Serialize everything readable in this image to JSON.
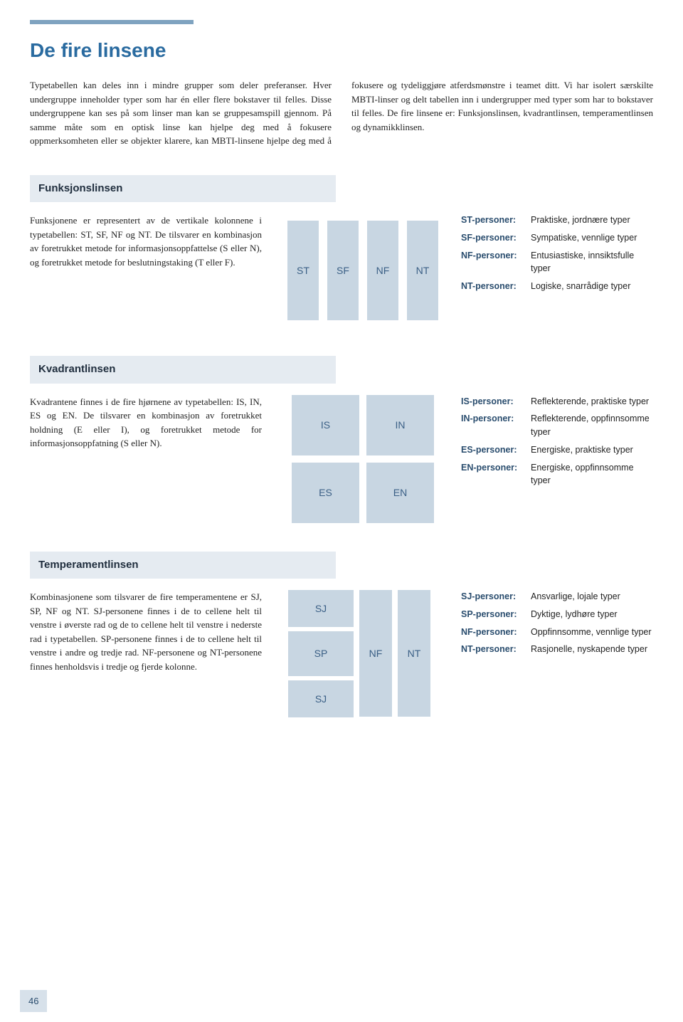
{
  "colors": {
    "accent_bar": "#7fa3c0",
    "title": "#2a6ba0",
    "section_bg": "#e5ebf1",
    "cell_bg": "#c8d6e2",
    "cell_text": "#3a5f85",
    "def_label": "#2a4d6e",
    "page_num_bg": "#d7e1ea"
  },
  "page_title": "De fire linsene",
  "intro": "Typetabellen kan deles inn i mindre grupper som deler preferanser. Hver undergruppe inneholder typer som har én eller flere bokstaver til felles. Disse undergruppene kan ses på som linser man kan se gruppesamspill gjennom. På samme måte som en optisk linse kan hjelpe deg med å fokusere oppmerksomheten eller se objekter klarere, kan MBTI-linsene hjelpe deg med å fokusere og tydeliggjøre atferdsmønstre i teamet ditt. Vi har isolert særskilte MBTI-linser og delt tabellen inn i undergrupper med typer som har to bokstaver til felles. De fire linsene er: Funksjonslinsen, kvadrantlinsen, temperamentlinsen og dynamikklinsen.",
  "sections": {
    "funksjon": {
      "heading": "Funksjonslinsen",
      "text": "Funksjonene er representert av de vertikale kolonnene i typetabellen: ST, SF, NF og NT. De tilsvarer en kombinasjon av foretrukket metode for informasjonsoppfattelse (S eller N), og foretrukket metode for beslutningstaking (T eller F).",
      "diagram": {
        "type": "columns",
        "labels": [
          "ST",
          "SF",
          "NF",
          "NT"
        ]
      },
      "defs": [
        {
          "label": "ST-personer:",
          "desc": "Praktiske, jordnære typer"
        },
        {
          "label": "SF-personer:",
          "desc": "Sympatiske, vennlige typer"
        },
        {
          "label": "NF-personer:",
          "desc": "Entusiastiske, innsiktsfulle typer"
        },
        {
          "label": "NT-personer:",
          "desc": "Logiske, snarrådige typer"
        }
      ]
    },
    "kvadrant": {
      "heading": "Kvadrantlinsen",
      "text": "Kvadrantene finnes i de fire hjørnene av typetabellen: IS, IN, ES og EN. De tilsvarer en kombinasjon av foretrukket holdning (E eller I), og foretrukket metode for informasjonsoppfatning (S eller N).",
      "diagram": {
        "type": "quadrant",
        "labels": [
          "IS",
          "IN",
          "ES",
          "EN"
        ]
      },
      "defs": [
        {
          "label": "IS-personer:",
          "desc": "Reflekterende, praktiske typer"
        },
        {
          "label": "IN-personer:",
          "desc": "Reflekterende, oppfinnsomme typer"
        },
        {
          "label": "ES-personer:",
          "desc": "Energiske, praktiske typer"
        },
        {
          "label": "EN-personer:",
          "desc": "Energiske, oppfinnsomme typer"
        }
      ]
    },
    "temperament": {
      "heading": "Temperamentlinsen",
      "text": "Kombinasjonene som tilsvarer de fire temperamentene er SJ, SP, NF og NT. SJ-personene finnes i de to cellene helt til venstre i øverste rad og de to cellene helt til venstre i nederste rad i typetabellen. SP-personene finnes i de to cellene helt til venstre i andre og tredje rad. NF-personene og NT-personene finnes henholdsvis i tredje og fjerde kolonne.",
      "diagram": {
        "type": "temperament",
        "left": [
          "SJ",
          "SP",
          "SJ"
        ],
        "right": [
          "NF",
          "NT"
        ]
      },
      "defs": [
        {
          "label": "SJ-personer:",
          "desc": "Ansvarlige, lojale typer"
        },
        {
          "label": "SP-personer:",
          "desc": "Dyktige, lydhøre typer"
        },
        {
          "label": "NF-personer:",
          "desc": "Oppfinnsomme, vennlige typer"
        },
        {
          "label": "NT-personer:",
          "desc": "Rasjonelle, nyskapende typer"
        }
      ]
    }
  },
  "page_number": "46"
}
